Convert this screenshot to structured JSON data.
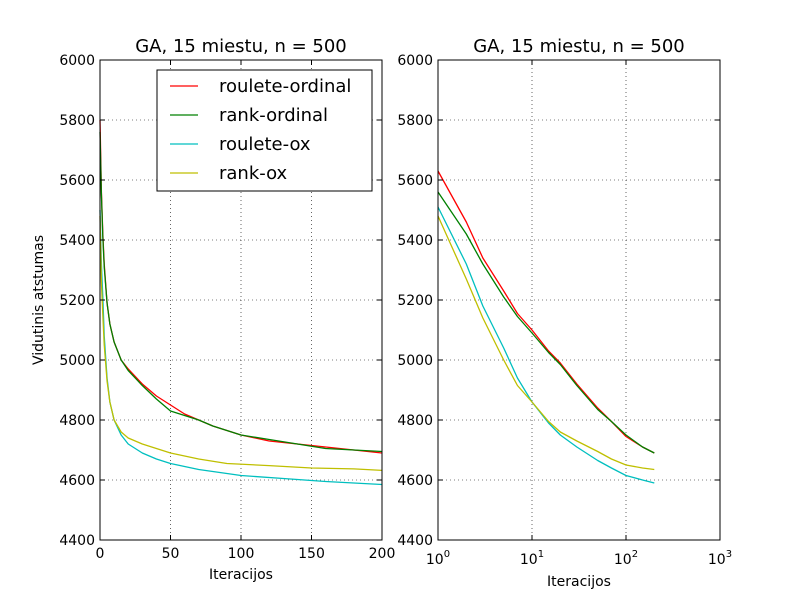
{
  "chart_data": [
    {
      "type": "line",
      "title": "GA, 15 miestu, n = 500",
      "xlabel": "Iteracijos",
      "ylabel": "Vidutinis atstumas",
      "xlim": [
        0,
        200
      ],
      "ylim": [
        4400,
        6000
      ],
      "xscale": "linear",
      "grid": true,
      "legend": "top-right",
      "xticks": [
        "0",
        "50",
        "100",
        "150",
        "200"
      ],
      "yticks": [
        "4400",
        "4600",
        "4800",
        "5000",
        "5200",
        "5400",
        "5600",
        "5800",
        "6000"
      ],
      "series": [
        {
          "name": "roulete-ordinal",
          "color": "#ff0000",
          "x": [
            0,
            1,
            2,
            3,
            5,
            7,
            10,
            15,
            20,
            30,
            40,
            50,
            60,
            70,
            80,
            100,
            120,
            140,
            160,
            180,
            200
          ],
          "y": [
            5800,
            5560,
            5420,
            5320,
            5190,
            5120,
            5060,
            5000,
            4970,
            4920,
            4880,
            4850,
            4820,
            4800,
            4780,
            4750,
            4730,
            4720,
            4710,
            4700,
            4690
          ]
        },
        {
          "name": "rank-ordinal",
          "color": "#008000",
          "x": [
            0,
            1,
            2,
            3,
            5,
            7,
            10,
            15,
            20,
            30,
            40,
            50,
            60,
            70,
            80,
            100,
            120,
            140,
            160,
            180,
            200
          ],
          "y": [
            5760,
            5550,
            5410,
            5310,
            5190,
            5120,
            5060,
            5000,
            4965,
            4915,
            4870,
            4830,
            4815,
            4800,
            4780,
            4750,
            4735,
            4720,
            4705,
            4700,
            4695
          ]
        },
        {
          "name": "roulete-ox",
          "color": "#00bfbf",
          "x": [
            0,
            1,
            2,
            3,
            5,
            7,
            10,
            15,
            20,
            25,
            30,
            40,
            50,
            70,
            100,
            130,
            160,
            200
          ],
          "y": [
            5500,
            5320,
            5210,
            5080,
            4940,
            4860,
            4800,
            4750,
            4720,
            4705,
            4690,
            4670,
            4655,
            4635,
            4615,
            4605,
            4595,
            4585
          ]
        },
        {
          "name": "rank-ox",
          "color": "#bfbf00",
          "x": [
            0,
            1,
            2,
            3,
            5,
            7,
            10,
            15,
            20,
            30,
            40,
            50,
            70,
            90,
            120,
            150,
            180,
            200
          ],
          "y": [
            5480,
            5260,
            5150,
            5050,
            4930,
            4860,
            4800,
            4760,
            4740,
            4720,
            4705,
            4690,
            4670,
            4655,
            4648,
            4640,
            4637,
            4632
          ]
        }
      ]
    },
    {
      "type": "line",
      "title": "GA, 15 miestu, n = 500",
      "xlabel": "Iteracijos",
      "ylabel": "",
      "xlim": [
        1,
        1000
      ],
      "ylim": [
        4400,
        6000
      ],
      "xscale": "log",
      "grid": true,
      "xticks": [
        {
          "value": 1,
          "base": "10",
          "exp": "0"
        },
        {
          "value": 10,
          "base": "10",
          "exp": "1"
        },
        {
          "value": 100,
          "base": "10",
          "exp": "2"
        },
        {
          "value": 1000,
          "base": "10",
          "exp": "3"
        }
      ],
      "yticks": [
        "4400",
        "4600",
        "4800",
        "5000",
        "5200",
        "5400",
        "5600",
        "5800",
        "6000"
      ],
      "series": [
        {
          "name": "roulete-ordinal",
          "color": "#ff0000",
          "x": [
            1,
            2,
            3,
            5,
            7,
            10,
            15,
            20,
            30,
            50,
            70,
            100,
            150,
            200
          ],
          "y": [
            5630,
            5460,
            5340,
            5230,
            5155,
            5100,
            5030,
            4990,
            4920,
            4840,
            4795,
            4745,
            4710,
            4690
          ]
        },
        {
          "name": "rank-ordinal",
          "color": "#008000",
          "x": [
            1,
            2,
            3,
            5,
            7,
            10,
            15,
            20,
            30,
            50,
            70,
            100,
            150,
            200
          ],
          "y": [
            5560,
            5420,
            5320,
            5210,
            5145,
            5090,
            5025,
            4985,
            4915,
            4835,
            4795,
            4750,
            4710,
            4690
          ]
        },
        {
          "name": "roulete-ox",
          "color": "#00bfbf",
          "x": [
            1,
            2,
            3,
            5,
            7,
            10,
            15,
            20,
            30,
            50,
            70,
            100,
            150,
            200
          ],
          "y": [
            5510,
            5320,
            5180,
            5040,
            4940,
            4860,
            4790,
            4750,
            4710,
            4665,
            4640,
            4615,
            4600,
            4590
          ]
        },
        {
          "name": "rank-ox",
          "color": "#bfbf00",
          "x": [
            1,
            2,
            3,
            5,
            7,
            10,
            15,
            20,
            30,
            50,
            70,
            100,
            150,
            200
          ],
          "y": [
            5480,
            5270,
            5140,
            5000,
            4915,
            4860,
            4795,
            4760,
            4730,
            4695,
            4670,
            4650,
            4640,
            4635
          ]
        }
      ]
    }
  ]
}
